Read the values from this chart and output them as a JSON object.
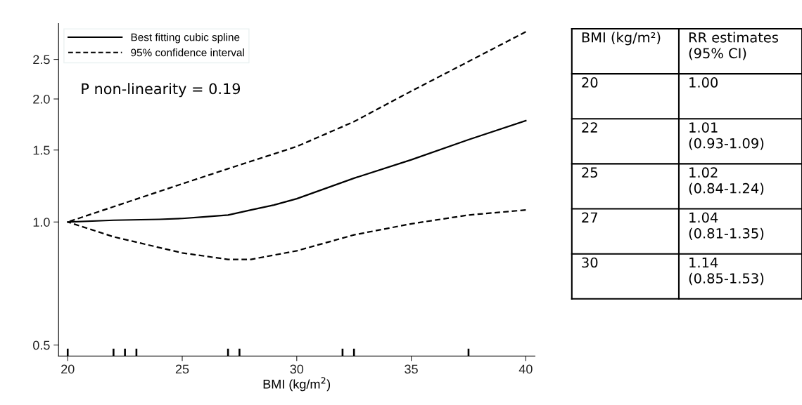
{
  "chart_data": [
    {
      "type": "line",
      "xlabel": "BMI (kg/m$^{2}$)",
      "xlim": [
        19.6,
        40.4
      ],
      "xticks": [
        20,
        25,
        30,
        35,
        40
      ],
      "log": true,
      "ylim": [
        0.47,
        3.06
      ],
      "yticks": [
        {
          "value": 0.5,
          "label": "0.5"
        },
        {
          "value": 1.0,
          "label": "1.0"
        },
        {
          "value": 1.5,
          "label": "1.5"
        },
        {
          "value": 2.0,
          "label": "2.0"
        },
        {
          "value": 2.5,
          "label": "2.5"
        }
      ],
      "grid": false,
      "legend": "top left",
      "annotations": [
        "P non-linearity = 0.19"
      ],
      "series": [
        {
          "name": "Best fitting cubic spline",
          "color": "#000000",
          "line_style": "solid",
          "x": [
            20,
            22,
            24,
            25,
            26,
            27,
            28,
            29,
            30,
            32.5,
            35,
            37.5,
            40
          ],
          "values": [
            1.0,
            1.01,
            1.015,
            1.02,
            1.03,
            1.04,
            1.07,
            1.1,
            1.14,
            1.28,
            1.42,
            1.59,
            1.77
          ]
        },
        {
          "name": "95% confidence interval",
          "color": "#000000",
          "line_style": "dashed",
          "x": [
            20,
            22,
            25,
            27,
            30,
            32.5,
            35,
            37.5,
            40
          ],
          "values": [
            1.0,
            1.09,
            1.24,
            1.35,
            1.53,
            1.76,
            2.09,
            2.47,
            2.92
          ]
        },
        {
          "color": "#000000",
          "line_style": "dashed",
          "x": [
            20,
            22,
            25,
            27,
            28,
            30,
            32.5,
            35,
            37.5,
            40
          ],
          "values": [
            1.0,
            0.92,
            0.84,
            0.81,
            0.81,
            0.85,
            0.93,
            0.99,
            1.04,
            1.07
          ]
        },
        {
          "type": "bar",
          "color": "#000000",
          "x": [
            20,
            22,
            22.5,
            23,
            27,
            27.5,
            32,
            32.5,
            37.5
          ],
          "base": [
            0.47,
            0.47,
            0.47,
            0.47,
            0.47,
            0.47,
            0.47,
            0.47,
            0.47
          ],
          "values": [
            0.02,
            0.02,
            0.02,
            0.02,
            0.02,
            0.02,
            0.02,
            0.02,
            0.02
          ]
        }
      ]
    },
    {
      "type": "other",
      "annotations": [
        "BMI (kg/m²)",
        "RR estimates\n(95% CI)",
        "20",
        "1.00",
        "22",
        "1.01\n(0.93-1.09)",
        "25",
        "1.02\n(0.84-1.24)",
        "27",
        "1.04\n(0.81-1.35)",
        "30",
        "1.14\n(0.85-1.53)"
      ]
    }
  ]
}
